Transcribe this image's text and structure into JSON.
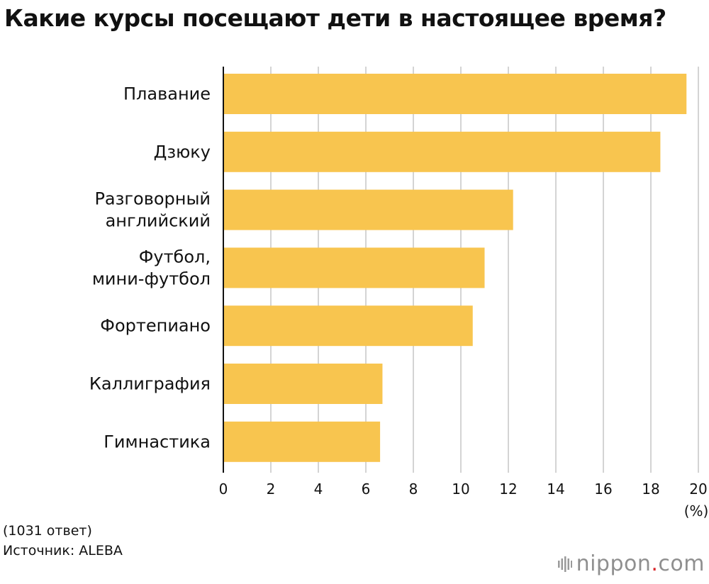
{
  "title": "Какие курсы посещают дети в настоящее время?",
  "chart_data": {
    "type": "bar",
    "orientation": "horizontal",
    "categories": [
      "Плавание",
      "Дзюку",
      "Разговорный\nанглийский",
      "Футбол,\nмини-футбол",
      "Фортепиано",
      "Каллиграфия",
      "Гимнастика"
    ],
    "values": [
      19.5,
      18.4,
      12.2,
      11.0,
      10.5,
      6.7,
      6.6
    ],
    "xlim": [
      0,
      20
    ],
    "x_ticks": [
      0,
      2,
      4,
      6,
      8,
      10,
      12,
      14,
      16,
      18,
      20
    ],
    "unit_label": "(%)",
    "grid": true,
    "bar_color": "#f8c54f",
    "grid_color": "#d4d4d4",
    "axis_color": "#111111"
  },
  "footer": {
    "respondents": "(1031 ответ)",
    "source": "Источник: ALEBA"
  },
  "brand": {
    "name": "nippon",
    "dot": ".",
    "tld": "com",
    "accent_color": "#d9252a",
    "mark_icon": "nippon-bars-logo-icon"
  }
}
